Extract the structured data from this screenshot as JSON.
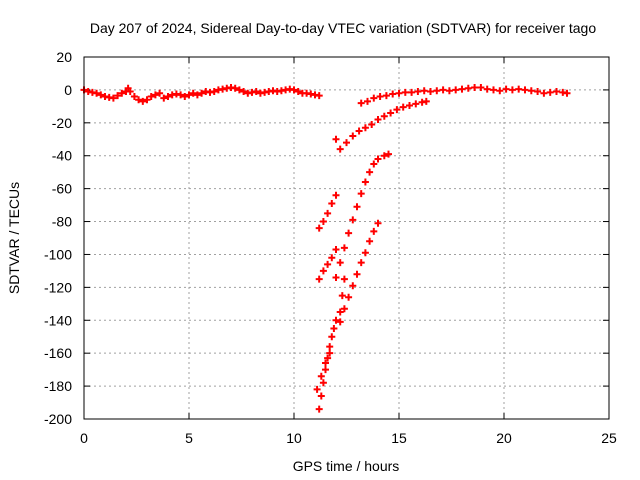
{
  "chart_data": {
    "type": "scatter",
    "title": "Day 207 of 2024, Sidereal Day-to-day VTEC variation (SDTVAR) for receiver tago",
    "xlabel": "GPS time / hours",
    "ylabel": "SDTVAR / TECUs",
    "xlim": [
      0,
      25
    ],
    "ylim": [
      -200,
      20
    ],
    "xticks": [
      0,
      5,
      10,
      15,
      20,
      25
    ],
    "yticks": [
      -200,
      -180,
      -160,
      -140,
      -120,
      -100,
      -80,
      -60,
      -40,
      -20,
      0,
      20
    ],
    "grid": true,
    "marker": "+",
    "series": [
      {
        "color": "#ff0000",
        "points": [
          [
            0.0,
            0.0
          ],
          [
            0.2,
            -1.0
          ],
          [
            0.4,
            -1.5
          ],
          [
            0.6,
            -2.0
          ],
          [
            0.8,
            -3.0
          ],
          [
            1.0,
            -4.0
          ],
          [
            1.2,
            -4.5
          ],
          [
            1.4,
            -5.0
          ],
          [
            1.6,
            -3.5
          ],
          [
            1.8,
            -2.0
          ],
          [
            2.0,
            -1.0
          ],
          [
            2.1,
            1.0
          ],
          [
            2.2,
            -1.0
          ],
          [
            2.4,
            -4.0
          ],
          [
            2.6,
            -6.0
          ],
          [
            2.8,
            -7.0
          ],
          [
            3.0,
            -6.0
          ],
          [
            3.2,
            -4.0
          ],
          [
            3.4,
            -3.0
          ],
          [
            3.6,
            -2.0
          ],
          [
            3.8,
            -5.0
          ],
          [
            4.0,
            -4.0
          ],
          [
            4.2,
            -3.0
          ],
          [
            4.4,
            -2.5
          ],
          [
            4.6,
            -3.0
          ],
          [
            4.8,
            -4.0
          ],
          [
            5.0,
            -3.0
          ],
          [
            5.2,
            -2.0
          ],
          [
            5.4,
            -3.0
          ],
          [
            5.6,
            -2.0
          ],
          [
            5.8,
            -1.0
          ],
          [
            6.0,
            -1.5
          ],
          [
            6.2,
            -1.0
          ],
          [
            6.4,
            0.0
          ],
          [
            6.6,
            0.5
          ],
          [
            6.8,
            1.0
          ],
          [
            7.0,
            1.5
          ],
          [
            7.2,
            1.0
          ],
          [
            7.4,
            0.0
          ],
          [
            7.6,
            -1.0
          ],
          [
            7.8,
            -2.0
          ],
          [
            8.0,
            -1.5
          ],
          [
            8.2,
            -1.0
          ],
          [
            8.4,
            -2.0
          ],
          [
            8.6,
            -1.5
          ],
          [
            8.8,
            -1.0
          ],
          [
            9.0,
            -0.5
          ],
          [
            9.2,
            -1.0
          ],
          [
            9.4,
            -0.5
          ],
          [
            9.6,
            0.0
          ],
          [
            9.8,
            0.5
          ],
          [
            10.0,
            0.0
          ],
          [
            10.2,
            -1.0
          ],
          [
            10.4,
            -2.0
          ],
          [
            10.6,
            -2.0
          ],
          [
            10.8,
            -2.5
          ],
          [
            11.0,
            -3.0
          ],
          [
            11.2,
            -3.5
          ],
          [
            12.0,
            -30.0
          ],
          [
            12.2,
            -36.0
          ],
          [
            12.5,
            -32.0
          ],
          [
            12.8,
            -28.0
          ],
          [
            13.1,
            -25.0
          ],
          [
            13.4,
            -23.0
          ],
          [
            13.7,
            -21.0
          ],
          [
            14.0,
            -18.0
          ],
          [
            14.3,
            -16.0
          ],
          [
            14.6,
            -14.0
          ],
          [
            14.9,
            -12.0
          ],
          [
            15.2,
            -10.5
          ],
          [
            15.5,
            -9.5
          ],
          [
            15.8,
            -8.5
          ],
          [
            16.1,
            -7.5
          ],
          [
            16.3,
            -7.0
          ],
          [
            13.2,
            -8.0
          ],
          [
            13.5,
            -7.0
          ],
          [
            13.8,
            -5.0
          ],
          [
            14.1,
            -4.0
          ],
          [
            14.4,
            -3.5
          ],
          [
            14.7,
            -2.5
          ],
          [
            15.0,
            -2.0
          ],
          [
            15.3,
            -1.5
          ],
          [
            15.6,
            -1.5
          ],
          [
            15.9,
            -1.0
          ],
          [
            16.2,
            -0.5
          ],
          [
            16.5,
            -1.0
          ],
          [
            16.8,
            -0.5
          ],
          [
            17.1,
            0.0
          ],
          [
            17.4,
            -0.5
          ],
          [
            17.7,
            0.0
          ],
          [
            18.0,
            0.5
          ],
          [
            18.3,
            1.0
          ],
          [
            18.6,
            1.5
          ],
          [
            18.9,
            1.5
          ],
          [
            19.2,
            0.5
          ],
          [
            19.5,
            0.0
          ],
          [
            19.8,
            -0.5
          ],
          [
            20.1,
            0.5
          ],
          [
            20.4,
            0.0
          ],
          [
            20.7,
            0.5
          ],
          [
            21.0,
            0.0
          ],
          [
            21.3,
            -0.5
          ],
          [
            21.6,
            -1.0
          ],
          [
            21.9,
            -2.0
          ],
          [
            22.2,
            -1.5
          ],
          [
            22.5,
            -1.0
          ],
          [
            22.8,
            -1.5
          ],
          [
            23.0,
            -2.0
          ],
          [
            11.2,
            -84.0
          ],
          [
            11.4,
            -80.0
          ],
          [
            11.6,
            -75.0
          ],
          [
            11.8,
            -69.0
          ],
          [
            12.0,
            -64.0
          ],
          [
            11.2,
            -115.0
          ],
          [
            11.4,
            -110.0
          ],
          [
            11.6,
            -106.0
          ],
          [
            11.8,
            -102.0
          ],
          [
            12.0,
            -97.0
          ],
          [
            11.2,
            -194.0
          ],
          [
            11.3,
            -186.0
          ],
          [
            11.4,
            -178.0
          ],
          [
            11.5,
            -170.0
          ],
          [
            11.6,
            -163.0
          ],
          [
            11.7,
            -156.0
          ],
          [
            11.8,
            -150.0
          ],
          [
            11.9,
            -145.0
          ],
          [
            12.0,
            -140.0
          ],
          [
            11.1,
            -182.0
          ],
          [
            11.3,
            -174.0
          ],
          [
            11.5,
            -166.0
          ],
          [
            11.7,
            -160.0
          ],
          [
            12.0,
            -114.0
          ],
          [
            12.2,
            -105.0
          ],
          [
            12.4,
            -96.0
          ],
          [
            12.6,
            -87.0
          ],
          [
            12.8,
            -79.0
          ],
          [
            13.0,
            -71.0
          ],
          [
            13.2,
            -63.0
          ],
          [
            13.4,
            -56.0
          ],
          [
            13.6,
            -50.0
          ],
          [
            13.8,
            -45.0
          ],
          [
            14.0,
            -42.0
          ],
          [
            14.3,
            -40.0
          ],
          [
            14.5,
            -39.0
          ],
          [
            12.2,
            -141.0
          ],
          [
            12.4,
            -133.0
          ],
          [
            12.6,
            -126.0
          ],
          [
            12.8,
            -119.0
          ],
          [
            13.0,
            -112.0
          ],
          [
            13.2,
            -105.0
          ],
          [
            13.4,
            -99.0
          ],
          [
            13.6,
            -92.0
          ],
          [
            13.8,
            -86.0
          ],
          [
            14.0,
            -81.0
          ],
          [
            12.2,
            -135.0
          ],
          [
            12.3,
            -125.0
          ],
          [
            12.4,
            -115.0
          ]
        ]
      }
    ]
  }
}
